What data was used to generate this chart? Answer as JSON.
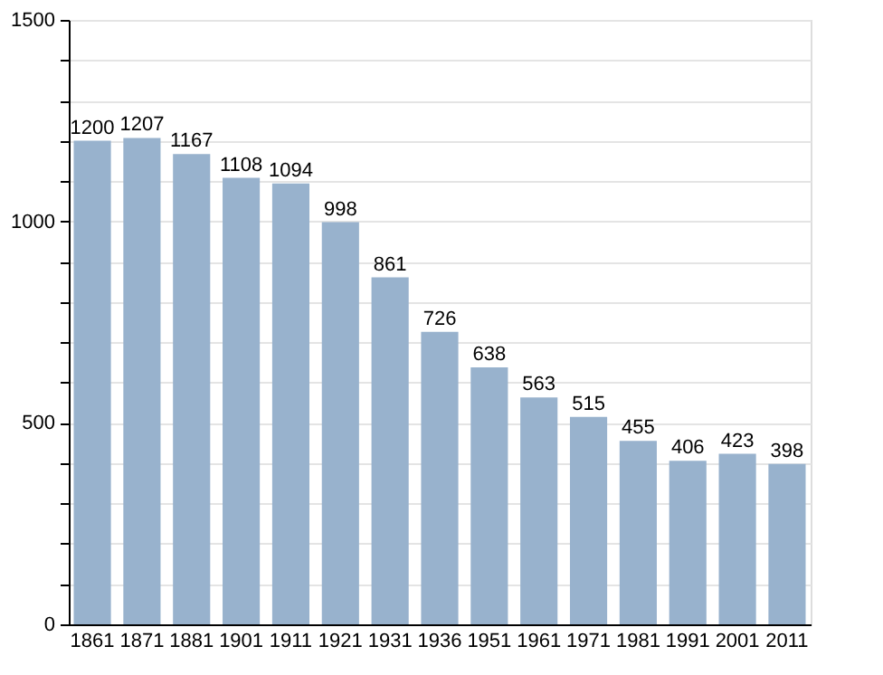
{
  "chart_data": {
    "type": "bar",
    "categories": [
      "1861",
      "1871",
      "1881",
      "1901",
      "1911",
      "1921",
      "1931",
      "1936",
      "1951",
      "1961",
      "1971",
      "1981",
      "1991",
      "2001",
      "2011"
    ],
    "values": [
      1200,
      1207,
      1167,
      1108,
      1094,
      998,
      861,
      726,
      638,
      563,
      515,
      455,
      406,
      423,
      398
    ],
    "color": "#98b2cd",
    "ylim": [
      0,
      1500
    ],
    "yticks": [
      0,
      {
        "value": 100,
        "label": null
      },
      {
        "value": 200,
        "label": null
      },
      {
        "value": 300,
        "label": null
      },
      {
        "value": 400,
        "label": null
      },
      500,
      {
        "value": 600,
        "label": null
      },
      {
        "value": 700,
        "label": null
      },
      {
        "value": 800,
        "label": null
      },
      {
        "value": 900,
        "label": null
      },
      1000,
      {
        "value": 1100,
        "label": null
      },
      {
        "value": 1200,
        "label": null
      },
      {
        "value": 1300,
        "label": null
      },
      {
        "value": 1400,
        "label": null
      },
      1500
    ],
    "grid": "y",
    "data_labels": true
  }
}
